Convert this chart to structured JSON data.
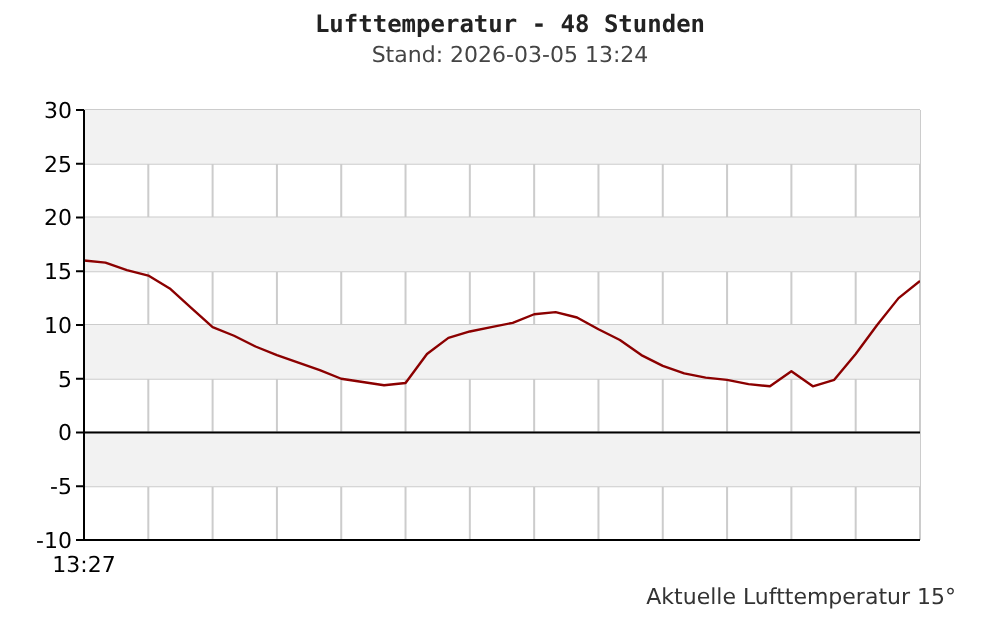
{
  "chart_data": {
    "type": "line",
    "title": "Lufttemperatur - 48 Stunden",
    "subtitle": "Stand: 2026-03-05 13:24",
    "annotations": [
      "Aktuelle Lufttemperatur 15°"
    ],
    "categories": [
      "13:27",
      null,
      null,
      null,
      null,
      null,
      null,
      null,
      null,
      null,
      null,
      null,
      null,
      null,
      null,
      null,
      null,
      null,
      null,
      null,
      null,
      null,
      null,
      null,
      null,
      null,
      null,
      null,
      null,
      null,
      null,
      null,
      null,
      null,
      null,
      null,
      null,
      null,
      null,
      null
    ],
    "series": [
      {
        "color": "#8b0000",
        "values": [
          16.0,
          15.8,
          15.1,
          14.6,
          13.4,
          11.6,
          9.8,
          9.0,
          8.0,
          7.2,
          6.5,
          5.8,
          5.0,
          4.7,
          4.4,
          4.6,
          7.3,
          8.8,
          9.4,
          9.8,
          10.2,
          11.0,
          11.2,
          10.7,
          9.6,
          8.6,
          7.2,
          6.2,
          5.5,
          5.1,
          4.9,
          4.5,
          4.3,
          5.7,
          4.3,
          4.9,
          7.3,
          10.0,
          12.5,
          14.1
        ]
      }
    ],
    "ylim": [
      -10,
      30
    ],
    "yticks": [
      -10,
      -5,
      0,
      5,
      10,
      15,
      20,
      25,
      30
    ],
    "grid": true,
    "marker": "none",
    "line_style": "solid",
    "bands": [
      {
        "axis": "y",
        "from": 25,
        "to": 30,
        "color": "#f2f2f2"
      },
      {
        "axis": "y",
        "from": 15,
        "to": 20,
        "color": "#f2f2f2"
      },
      {
        "axis": "y",
        "from": 5,
        "to": 10,
        "color": "#f2f2f2"
      },
      {
        "axis": "y",
        "from": -5,
        "to": 0,
        "color": "#f2f2f2"
      }
    ],
    "ref_lines": [
      {
        "axis": "y",
        "value": 0,
        "color": "#000000"
      }
    ]
  }
}
